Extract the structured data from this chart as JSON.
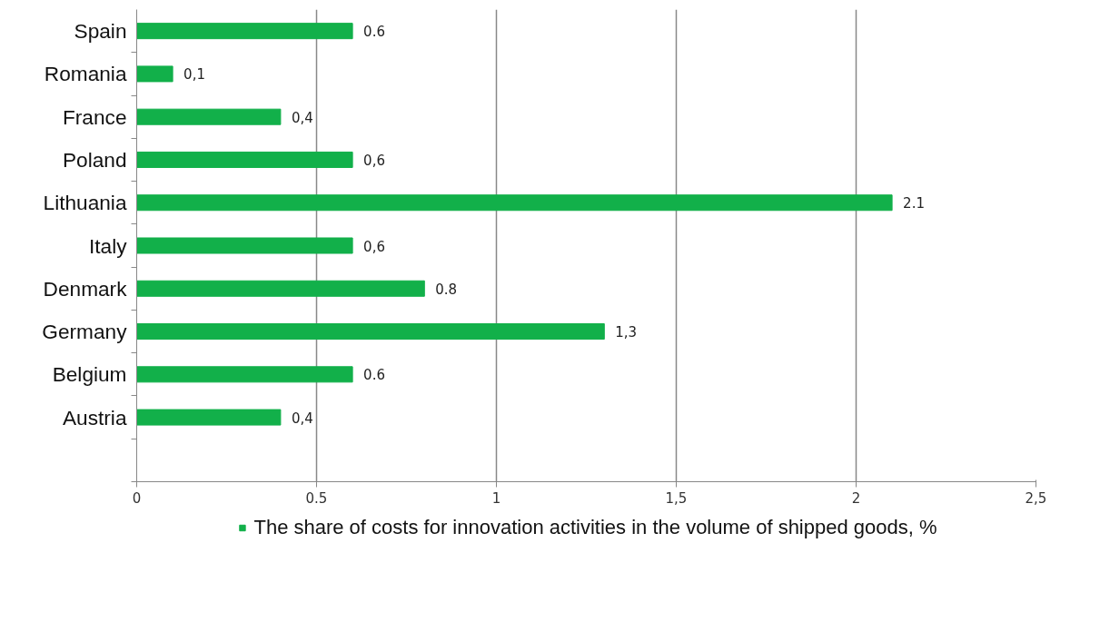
{
  "chart_data": {
    "type": "bar",
    "orientation": "horizontal",
    "categories": [
      "Spain",
      "Romania",
      "France",
      "Poland",
      "Lithuania",
      "Italy",
      "Denmark",
      "Germany",
      "Belgium",
      "Austria"
    ],
    "series": [
      {
        "name": "The share of costs for innovation activities in the volume of shipped goods, %",
        "color": "#12b04a",
        "values": [
          0.6,
          0.1,
          0.4,
          0.6,
          2.1,
          0.6,
          0.8,
          1.3,
          0.6,
          0.4
        ],
        "value_labels": [
          "0.6",
          "0,1",
          "0,4",
          "0,6",
          "2.1",
          "0,6",
          "0.8",
          "1,3",
          "0.6",
          "0,4"
        ]
      }
    ],
    "xlim": [
      0,
      2.5
    ],
    "xticks": [
      0,
      0.5,
      1,
      {
        "value": 1.5,
        "label": "1,5"
      },
      2,
      {
        "value": 2.5,
        "label": "2,5"
      }
    ],
    "grid": "x",
    "legend": "bottom"
  }
}
